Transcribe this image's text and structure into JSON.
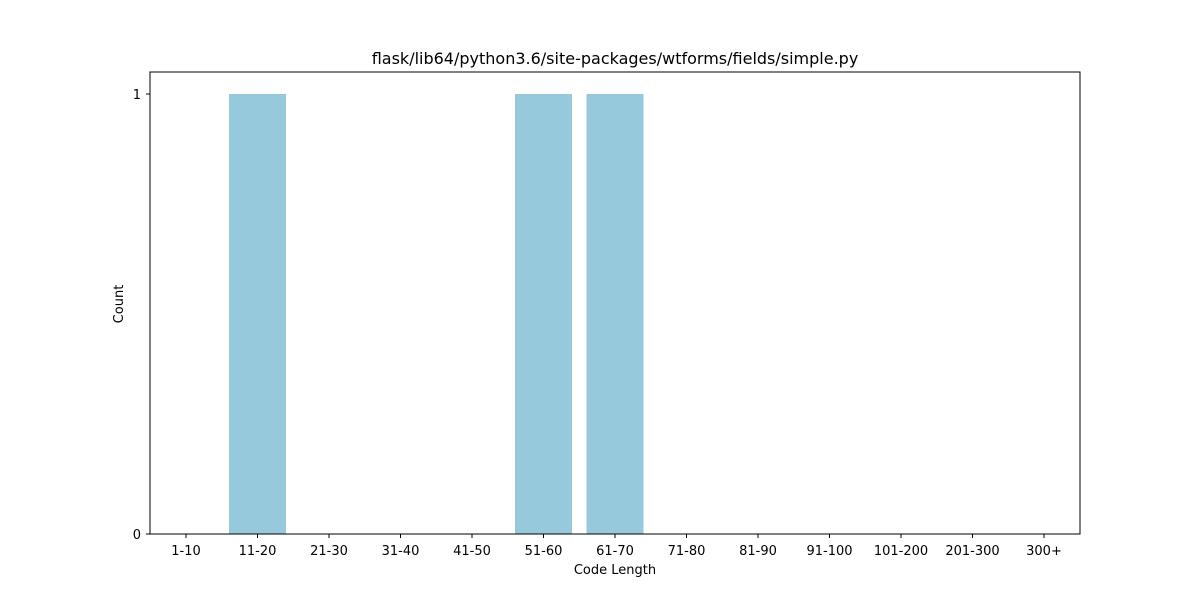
{
  "chart_data": {
    "type": "bar",
    "title": "flask/lib64/python3.6/site-packages/wtforms/fields/simple.py",
    "xlabel": "Code Length",
    "ylabel": "Count",
    "categories": [
      "1-10",
      "11-20",
      "21-30",
      "31-40",
      "41-50",
      "51-60",
      "61-70",
      "71-80",
      "81-90",
      "91-100",
      "101-200",
      "201-300",
      "300+"
    ],
    "values": [
      0,
      1,
      0,
      0,
      0,
      1,
      1,
      0,
      0,
      0,
      0,
      0,
      0
    ],
    "ylim": [
      0,
      1
    ],
    "yticks": [
      0,
      1
    ],
    "bar_color": "#96c9dc",
    "grid": false,
    "legend": "none"
  }
}
